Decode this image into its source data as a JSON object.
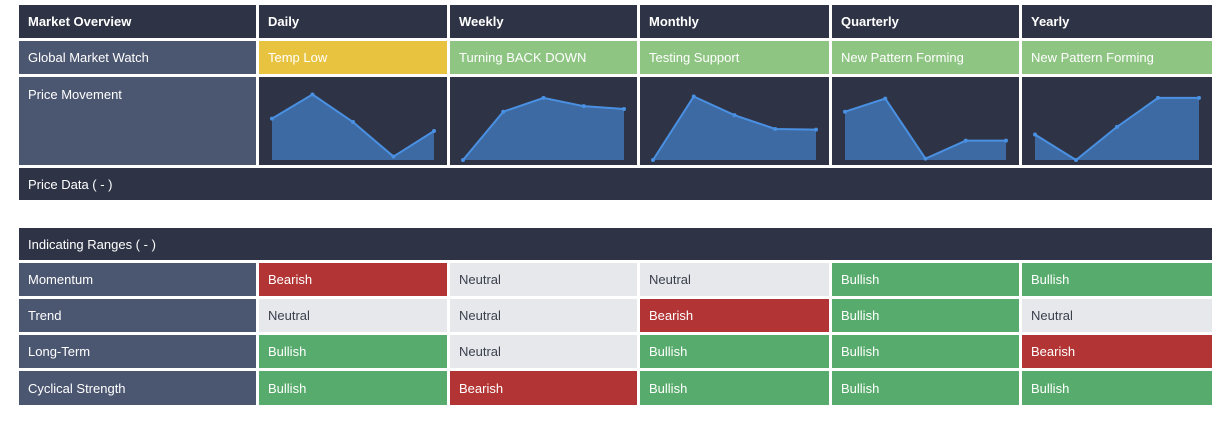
{
  "overview": {
    "title": "Market Overview",
    "periods": [
      "Daily",
      "Weekly",
      "Monthly",
      "Quarterly",
      "Yearly"
    ],
    "watch_label": "Global Market Watch",
    "watch": [
      {
        "text": "Temp Low",
        "color": "#e8c33f"
      },
      {
        "text": "Turning BACK DOWN",
        "color": "#8fc583"
      },
      {
        "text": "Testing Support",
        "color": "#8fc583"
      },
      {
        "text": "New Pattern Forming",
        "color": "#8fc583"
      },
      {
        "text": "New Pattern Forming",
        "color": "#8fc583"
      }
    ],
    "price_movement_label": "Price Movement",
    "price_data_label": "Price Data ( - )"
  },
  "chart_data": [
    {
      "type": "area",
      "name": "Daily",
      "values": [
        0.6,
        0.95,
        0.55,
        0.05,
        0.42
      ]
    },
    {
      "type": "area",
      "name": "Weekly",
      "values": [
        0.0,
        0.7,
        0.9,
        0.78,
        0.74
      ]
    },
    {
      "type": "area",
      "name": "Monthly",
      "values": [
        0.0,
        0.92,
        0.65,
        0.45,
        0.44
      ]
    },
    {
      "type": "area",
      "name": "Quarterly",
      "values": [
        0.7,
        0.89,
        0.02,
        0.28,
        0.28
      ]
    },
    {
      "type": "area",
      "name": "Yearly",
      "values": [
        0.37,
        0.0,
        0.48,
        0.9,
        0.9
      ]
    }
  ],
  "ranges": {
    "title": "Indicating Ranges ( - )",
    "rows": [
      {
        "label": "Momentum",
        "values": [
          "Bearish",
          "Neutral",
          "Neutral",
          "Bullish",
          "Bullish"
        ]
      },
      {
        "label": "Trend",
        "values": [
          "Neutral",
          "Neutral",
          "Bearish",
          "Bullish",
          "Neutral"
        ]
      },
      {
        "label": "Long-Term",
        "values": [
          "Bullish",
          "Neutral",
          "Bullish",
          "Bullish",
          "Bearish"
        ]
      },
      {
        "label": "Cyclical Strength",
        "values": [
          "Bullish",
          "Bearish",
          "Bullish",
          "Bullish",
          "Bullish"
        ]
      }
    ]
  },
  "colors": {
    "header": "#2e3445",
    "label": "#4b5670",
    "bullish": "#57ab6c",
    "bearish": "#b23434",
    "neutral": "#e6e8ec",
    "spark_fill": "#3d6aa3",
    "spark_line": "#4a90e2"
  }
}
